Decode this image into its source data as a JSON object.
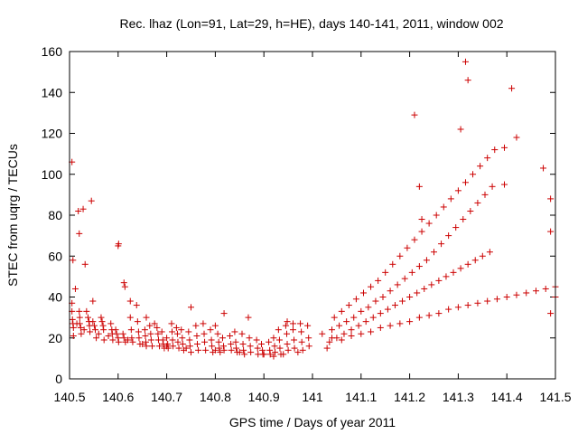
{
  "chart_data": {
    "type": "scatter",
    "title": "Rec. lhaz (Lon=91, Lat=29, h=HE), days 140-141, 2011, window 002",
    "xlabel": "GPS time / Days of year 2011",
    "ylabel": "STEC from uqrg / TECUs",
    "xlim": [
      140.5,
      141.5
    ],
    "ylim": [
      0,
      160
    ],
    "x_ticks": [
      140.5,
      140.6,
      140.7,
      140.8,
      140.9,
      141.0,
      141.1,
      141.2,
      141.3,
      141.4,
      141.5
    ],
    "x_tick_labels": [
      "140.5",
      "140.6",
      "140.7",
      "140.8",
      "140.9",
      "141",
      "141.1",
      "141.2",
      "141.3",
      "141.4",
      "141.5"
    ],
    "y_ticks": [
      0,
      20,
      40,
      60,
      80,
      100,
      120,
      140,
      160
    ],
    "y_tick_labels": [
      "0",
      "20",
      "40",
      "60",
      "80",
      "100",
      "120",
      "140",
      "160"
    ],
    "marker": "+",
    "color": "#cc0000",
    "grid": false,
    "series": [
      {
        "points": [
          [
            140.505,
            106
          ],
          [
            140.507,
            58
          ],
          [
            140.512,
            44
          ],
          [
            140.518,
            82
          ],
          [
            140.52,
            71
          ],
          [
            140.528,
            83
          ],
          [
            140.532,
            56
          ],
          [
            140.545,
            87
          ],
          [
            140.548,
            38
          ],
          [
            140.6,
            65
          ],
          [
            140.601,
            66
          ],
          [
            140.612,
            47
          ],
          [
            140.614,
            45
          ],
          [
            140.625,
            38
          ],
          [
            140.638,
            36
          ],
          [
            140.658,
            30
          ],
          [
            140.675,
            27
          ],
          [
            140.75,
            35
          ],
          [
            140.8,
            26
          ],
          [
            140.818,
            32
          ],
          [
            140.868,
            30
          ],
          [
            140.948,
            28
          ],
          [
            140.96,
            27
          ],
          [
            140.505,
            37
          ],
          [
            140.505,
            33
          ],
          [
            140.506,
            29
          ],
          [
            140.507,
            27
          ],
          [
            140.508,
            25
          ],
          [
            140.508,
            21
          ],
          [
            140.52,
            33
          ],
          [
            140.521,
            30
          ],
          [
            140.521,
            27
          ],
          [
            140.523,
            25
          ],
          [
            140.524,
            22
          ],
          [
            140.535,
            33
          ],
          [
            140.538,
            30
          ],
          [
            140.54,
            28
          ],
          [
            140.541,
            26
          ],
          [
            140.542,
            23
          ],
          [
            140.548,
            28
          ],
          [
            140.551,
            26
          ],
          [
            140.553,
            24
          ],
          [
            140.555,
            20
          ],
          [
            140.565,
            30
          ],
          [
            140.567,
            28
          ],
          [
            140.569,
            26
          ],
          [
            140.57,
            24
          ],
          [
            140.571,
            19
          ],
          [
            140.585,
            27
          ],
          [
            140.587,
            24
          ],
          [
            140.588,
            22
          ],
          [
            140.589,
            19
          ],
          [
            140.595,
            24
          ],
          [
            140.597,
            22
          ],
          [
            140.6,
            20
          ],
          [
            140.601,
            18
          ],
          [
            140.61,
            22
          ],
          [
            140.612,
            20
          ],
          [
            140.615,
            18
          ],
          [
            140.625,
            30
          ],
          [
            140.627,
            24
          ],
          [
            140.628,
            20
          ],
          [
            140.63,
            18
          ],
          [
            140.64,
            28
          ],
          [
            140.642,
            23
          ],
          [
            140.643,
            20
          ],
          [
            140.645,
            17
          ],
          [
            140.655,
            24
          ],
          [
            140.656,
            21
          ],
          [
            140.657,
            18
          ],
          [
            140.658,
            16
          ],
          [
            140.665,
            26
          ],
          [
            140.667,
            22
          ],
          [
            140.668,
            19
          ],
          [
            140.67,
            16
          ],
          [
            140.68,
            25
          ],
          [
            140.682,
            22
          ],
          [
            140.683,
            19
          ],
          [
            140.685,
            16
          ],
          [
            140.69,
            23
          ],
          [
            140.692,
            19
          ],
          [
            140.693,
            17
          ],
          [
            140.695,
            15
          ],
          [
            140.7,
            20
          ],
          [
            140.702,
            17
          ],
          [
            140.703,
            15
          ],
          [
            140.71,
            27
          ],
          [
            140.711,
            23
          ],
          [
            140.712,
            19
          ],
          [
            140.713,
            16
          ],
          [
            140.72,
            25
          ],
          [
            140.722,
            22
          ],
          [
            140.723,
            18
          ],
          [
            140.725,
            15
          ],
          [
            140.73,
            24
          ],
          [
            140.732,
            20
          ],
          [
            140.733,
            17
          ],
          [
            140.735,
            14
          ],
          [
            140.745,
            23
          ],
          [
            140.747,
            19
          ],
          [
            140.748,
            16
          ],
          [
            140.75,
            13
          ],
          [
            140.76,
            26
          ],
          [
            140.762,
            21
          ],
          [
            140.763,
            17
          ],
          [
            140.765,
            14
          ],
          [
            140.775,
            27
          ],
          [
            140.777,
            22
          ],
          [
            140.778,
            18
          ],
          [
            140.78,
            14
          ],
          [
            140.79,
            24
          ],
          [
            140.792,
            19
          ],
          [
            140.793,
            16
          ],
          [
            140.795,
            13
          ],
          [
            140.805,
            22
          ],
          [
            140.807,
            18
          ],
          [
            140.808,
            15
          ],
          [
            140.81,
            13
          ],
          [
            140.815,
            20
          ],
          [
            140.817,
            16
          ],
          [
            140.818,
            14
          ],
          [
            140.83,
            21
          ],
          [
            140.832,
            17
          ],
          [
            140.833,
            14
          ],
          [
            140.84,
            23
          ],
          [
            140.842,
            18
          ],
          [
            140.843,
            15
          ],
          [
            140.845,
            13
          ],
          [
            140.855,
            22
          ],
          [
            140.857,
            17
          ],
          [
            140.858,
            14
          ],
          [
            140.86,
            12
          ],
          [
            140.87,
            20
          ],
          [
            140.872,
            16
          ],
          [
            140.873,
            13
          ],
          [
            140.885,
            19
          ],
          [
            140.887,
            15
          ],
          [
            140.888,
            12
          ],
          [
            140.895,
            17
          ],
          [
            140.897,
            14
          ],
          [
            140.898,
            12
          ],
          [
            140.91,
            18
          ],
          [
            140.912,
            14
          ],
          [
            140.913,
            12
          ],
          [
            140.92,
            20
          ],
          [
            140.922,
            16
          ],
          [
            140.923,
            13
          ],
          [
            140.93,
            24
          ],
          [
            140.932,
            19
          ],
          [
            140.933,
            15
          ],
          [
            140.935,
            12
          ],
          [
            140.945,
            26
          ],
          [
            140.947,
            22
          ],
          [
            140.948,
            17
          ],
          [
            140.95,
            14
          ],
          [
            140.96,
            24
          ],
          [
            140.962,
            19
          ],
          [
            140.963,
            15
          ],
          [
            140.975,
            27
          ],
          [
            140.977,
            23
          ],
          [
            140.978,
            18
          ],
          [
            140.98,
            14
          ],
          [
            140.99,
            26
          ],
          [
            140.992,
            20
          ],
          [
            140.993,
            16
          ],
          [
            140.515,
            27
          ],
          [
            140.53,
            24
          ],
          [
            140.56,
            22
          ],
          [
            140.58,
            21
          ],
          [
            140.62,
            19
          ],
          [
            140.65,
            17
          ],
          [
            140.7,
            16
          ],
          [
            140.74,
            15
          ],
          [
            140.8,
            14
          ],
          [
            140.85,
            13
          ],
          [
            140.9,
            12
          ],
          [
            140.92,
            11
          ],
          [
            140.94,
            12
          ],
          [
            140.97,
            13
          ],
          [
            141.03,
            15
          ],
          [
            141.035,
            18
          ],
          [
            141.04,
            24
          ],
          [
            141.045,
            30
          ],
          [
            141.05,
            20
          ],
          [
            141.055,
            26
          ],
          [
            141.06,
            33
          ],
          [
            141.065,
            22
          ],
          [
            141.07,
            28
          ],
          [
            141.075,
            36
          ],
          [
            141.08,
            24
          ],
          [
            141.085,
            30
          ],
          [
            141.09,
            39
          ],
          [
            141.095,
            26
          ],
          [
            141.1,
            33
          ],
          [
            141.105,
            42
          ],
          [
            141.11,
            28
          ],
          [
            141.115,
            35
          ],
          [
            141.12,
            45
          ],
          [
            141.125,
            30
          ],
          [
            141.13,
            38
          ],
          [
            141.135,
            48
          ],
          [
            141.14,
            32
          ],
          [
            141.145,
            40
          ],
          [
            141.15,
            52
          ],
          [
            141.155,
            34
          ],
          [
            141.16,
            43
          ],
          [
            141.165,
            56
          ],
          [
            141.17,
            36
          ],
          [
            141.175,
            46
          ],
          [
            141.18,
            60
          ],
          [
            141.185,
            38
          ],
          [
            141.19,
            49
          ],
          [
            141.195,
            64
          ],
          [
            141.2,
            40
          ],
          [
            141.205,
            52
          ],
          [
            141.21,
            68
          ],
          [
            141.215,
            42
          ],
          [
            141.22,
            55
          ],
          [
            141.225,
            72
          ],
          [
            141.23,
            44
          ],
          [
            141.235,
            58
          ],
          [
            141.24,
            76
          ],
          [
            141.245,
            46
          ],
          [
            141.25,
            62
          ],
          [
            141.255,
            80
          ],
          [
            141.26,
            48
          ],
          [
            141.265,
            66
          ],
          [
            141.27,
            84
          ],
          [
            141.275,
            50
          ],
          [
            141.28,
            70
          ],
          [
            141.285,
            88
          ],
          [
            141.29,
            52
          ],
          [
            141.295,
            74
          ],
          [
            141.3,
            92
          ],
          [
            141.305,
            54
          ],
          [
            141.31,
            78
          ],
          [
            141.315,
            96
          ],
          [
            141.32,
            56
          ],
          [
            141.325,
            82
          ],
          [
            141.33,
            100
          ],
          [
            141.335,
            58
          ],
          [
            141.34,
            86
          ],
          [
            141.345,
            104
          ],
          [
            141.35,
            60
          ],
          [
            141.355,
            90
          ],
          [
            141.36,
            108
          ],
          [
            141.365,
            62
          ],
          [
            141.37,
            94
          ],
          [
            141.375,
            112
          ],
          [
            141.02,
            22
          ],
          [
            141.04,
            20
          ],
          [
            141.06,
            19
          ],
          [
            141.08,
            21
          ],
          [
            141.1,
            22
          ],
          [
            141.12,
            23
          ],
          [
            141.14,
            25
          ],
          [
            141.16,
            26
          ],
          [
            141.18,
            27
          ],
          [
            141.2,
            28
          ],
          [
            141.22,
            30
          ],
          [
            141.24,
            31
          ],
          [
            141.26,
            32
          ],
          [
            141.28,
            34
          ],
          [
            141.3,
            35
          ],
          [
            141.32,
            36
          ],
          [
            141.34,
            37
          ],
          [
            141.36,
            38
          ],
          [
            141.38,
            39
          ],
          [
            141.4,
            40
          ],
          [
            141.42,
            41
          ],
          [
            141.44,
            42
          ],
          [
            141.46,
            43
          ],
          [
            141.48,
            44
          ],
          [
            141.5,
            45
          ],
          [
            141.21,
            129
          ],
          [
            141.22,
            94
          ],
          [
            141.225,
            78
          ],
          [
            141.305,
            122
          ],
          [
            141.315,
            155
          ],
          [
            141.32,
            146
          ],
          [
            141.41,
            142
          ],
          [
            141.42,
            118
          ],
          [
            141.395,
            95
          ],
          [
            141.395,
            113
          ],
          [
            141.475,
            103
          ],
          [
            141.49,
            88
          ],
          [
            141.49,
            72
          ],
          [
            141.5,
            40
          ],
          [
            141.49,
            32
          ]
        ]
      }
    ]
  }
}
